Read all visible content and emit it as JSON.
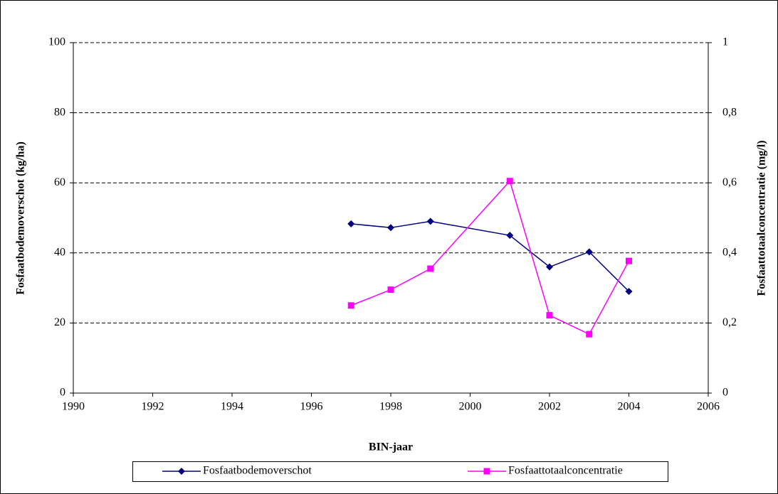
{
  "chart_data": {
    "type": "line",
    "x_label": "BIN-jaar",
    "y_label": "Fosfaatbodemoverschot (kg/ha)",
    "y2_label": "Fosfaattotaalconcentratie (mg/l)",
    "x": [
      1997,
      1998,
      1999,
      2001,
      2002,
      2003,
      2004
    ],
    "series": [
      {
        "name": "Fosfaatbodemoverschot",
        "color": "#000080",
        "marker": "diamond",
        "values": [
          48.3,
          47.2,
          49,
          45,
          36,
          40.3,
          29
        ]
      },
      {
        "name": "Fosfaattotaalconcentratie",
        "color": "#ff00ff",
        "marker": "square",
        "axis": "y2",
        "values": [
          0.25,
          0.295,
          0.355,
          0.605,
          0.222,
          0.168,
          0.377
        ]
      }
    ],
    "xlim": [
      1990,
      2006
    ],
    "xticks": [
      1990,
      1992,
      1994,
      1996,
      1998,
      2000,
      2002,
      2004,
      2006
    ],
    "ylim": [
      0,
      100
    ],
    "yticks": [
      0,
      20,
      40,
      60,
      80,
      100
    ],
    "y2lim": [
      0,
      1
    ],
    "y2ticks": [
      0,
      {
        "value": 0.2,
        "label": "0,2"
      },
      {
        "value": 0.4,
        "label": "0,4"
      },
      {
        "value": 0.6,
        "label": "0,6"
      },
      {
        "value": 0.8,
        "label": "0,8"
      },
      1
    ],
    "grid": true,
    "legend": "bottom"
  }
}
